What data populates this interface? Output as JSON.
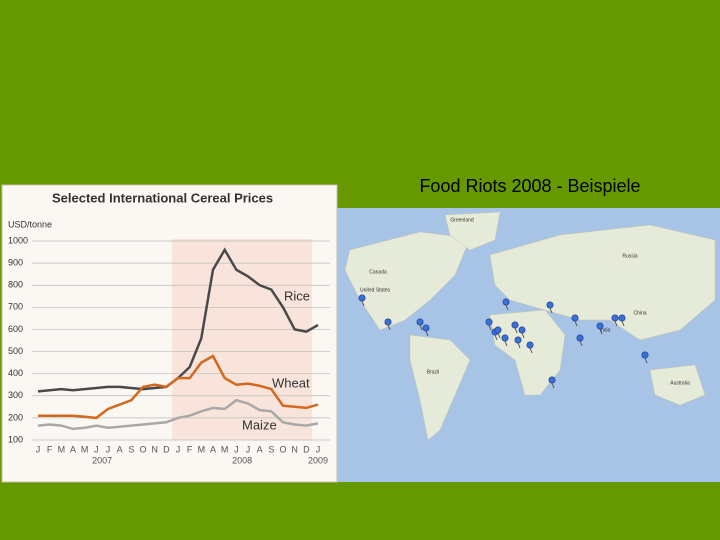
{
  "slide_title": "Food Riots 2008 - Beispiele",
  "chart_data": {
    "type": "line",
    "title": "Selected International Cereal Prices",
    "y_label": "USD/tonne",
    "categories": [
      "J",
      "F",
      "M",
      "A",
      "M",
      "J",
      "J",
      "A",
      "S",
      "O",
      "N",
      "D",
      "J",
      "F",
      "M",
      "A",
      "M",
      "J",
      "J",
      "A",
      "S",
      "O",
      "N",
      "D",
      "J"
    ],
    "year_labels": [
      "2007",
      "2008",
      "2009"
    ],
    "series": [
      {
        "name": "Rice",
        "color": "#4a4a4a",
        "values": [
          320,
          325,
          330,
          325,
          330,
          335,
          340,
          340,
          335,
          330,
          335,
          340,
          380,
          430,
          560,
          870,
          960,
          870,
          840,
          800,
          780,
          700,
          600,
          590,
          620
        ]
      },
      {
        "name": "Wheat",
        "color": "#d2691e",
        "values": [
          210,
          210,
          210,
          210,
          205,
          200,
          240,
          260,
          280,
          340,
          350,
          340,
          380,
          380,
          450,
          480,
          380,
          350,
          355,
          345,
          330,
          255,
          250,
          245,
          260
        ]
      },
      {
        "name": "Maize",
        "color": "#a8a8a8",
        "values": [
          165,
          170,
          165,
          150,
          155,
          165,
          155,
          160,
          165,
          170,
          175,
          180,
          200,
          210,
          230,
          245,
          240,
          280,
          265,
          235,
          230,
          180,
          170,
          165,
          175
        ]
      }
    ],
    "ylim": [
      100,
      1000
    ],
    "yticks": [
      100,
      200,
      300,
      400,
      500,
      600,
      700,
      800,
      900,
      1000
    ],
    "grid": true
  },
  "map": {
    "labels": [
      "Greenland",
      "Canada",
      "United States",
      "Brazil",
      "Russia",
      "China",
      "India",
      "Australia"
    ]
  }
}
